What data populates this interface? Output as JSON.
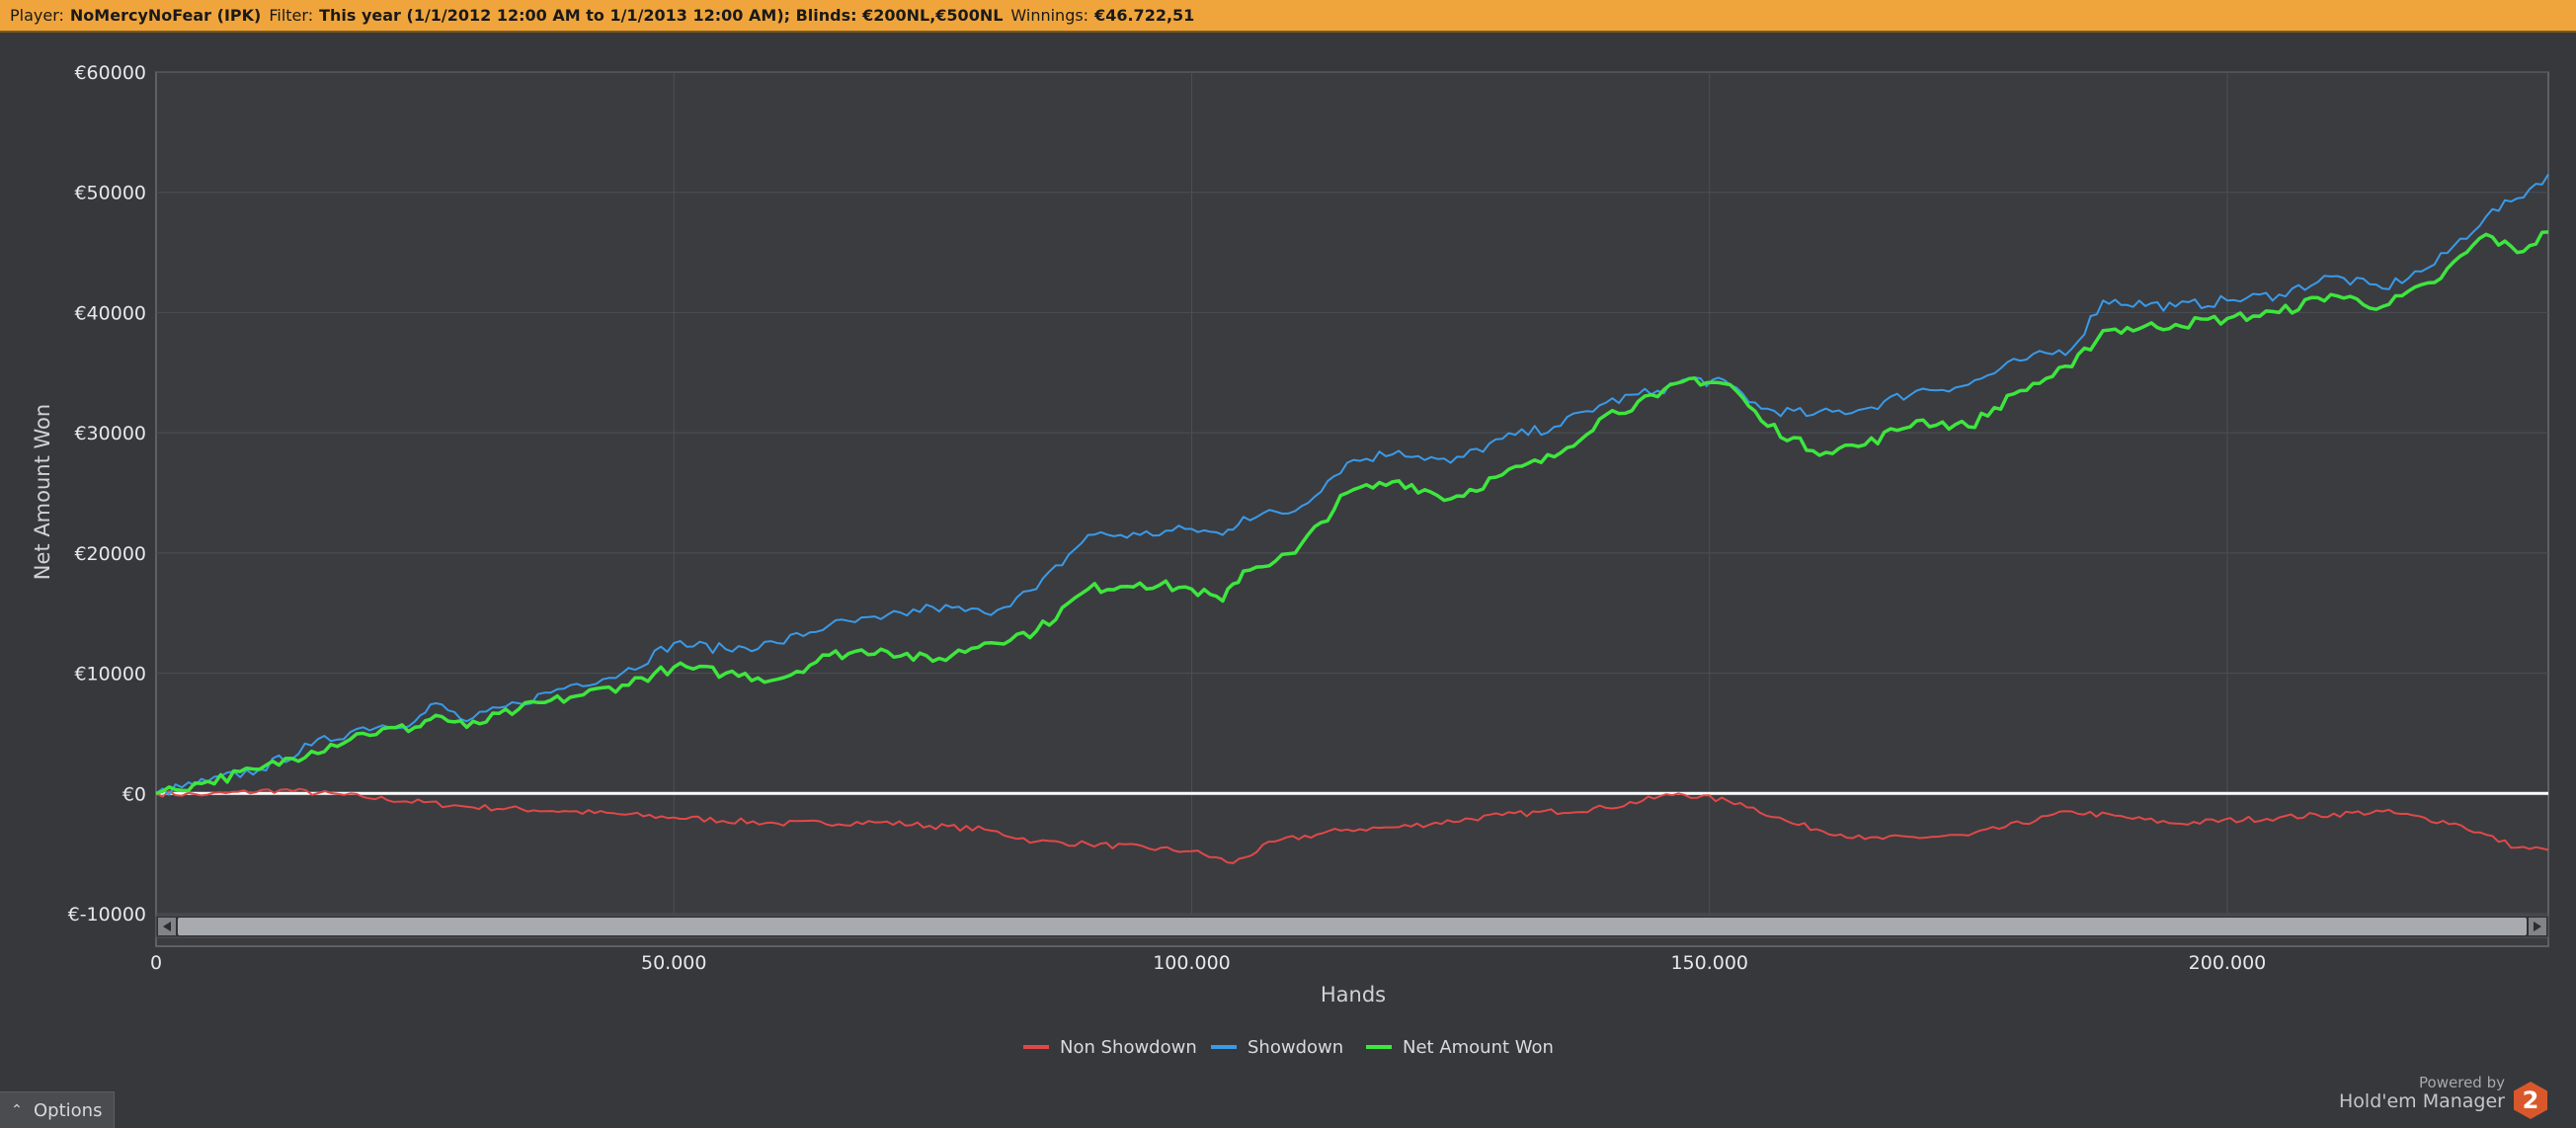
{
  "header": {
    "player_label": "Player:",
    "player_value": "NoMercyNoFear (IPK)",
    "filter_label": "Filter:",
    "filter_value": "This year (1/1/2012 12:00 AM to 1/1/2013 12:00 AM); Blinds: €200NL,€500NL",
    "winnings_label": "Winnings:",
    "winnings_value": "€46.722,51"
  },
  "footer": {
    "options_label": "Options",
    "powered_by": "Powered by",
    "brand": "Hold'em Manager",
    "logo_number": "2"
  },
  "colors": {
    "non_showdown": "#e04848",
    "showdown": "#3a9ae8",
    "net_won": "#3ee63e",
    "zero_line": "#ffffff"
  },
  "chart_data": {
    "type": "line",
    "xlabel": "Hands",
    "ylabel": "Net Amount Won",
    "xlim": [
      0,
      231000
    ],
    "ylim": [
      -10000,
      60000
    ],
    "x_ticks": [
      0,
      50000,
      100000,
      150000,
      200000
    ],
    "x_tick_labels": [
      "0",
      "50.000",
      "100.000",
      "150.000",
      "200.000"
    ],
    "y_ticks": [
      -10000,
      0,
      10000,
      20000,
      30000,
      40000,
      50000,
      60000
    ],
    "y_tick_labels": [
      "€-10000",
      "€0",
      "€10000",
      "€20000",
      "€30000",
      "€40000",
      "€50000",
      "€60000"
    ],
    "grid": true,
    "legend_position": "bottom-center",
    "series": [
      {
        "name": "Non Showdown",
        "x": [
          0,
          5000,
          12000,
          20000,
          30000,
          40000,
          50000,
          60000,
          70000,
          80000,
          85000,
          90000,
          100000,
          104000,
          108000,
          115000,
          120000,
          130000,
          140000,
          147000,
          153000,
          158000,
          165000,
          175000,
          185000,
          195000,
          205000,
          215000,
          222000,
          228000,
          231000
        ],
        "y": [
          0,
          -100,
          300,
          -300,
          -1100,
          -1500,
          -2000,
          -2500,
          -2400,
          -3000,
          -4000,
          -4200,
          -4800,
          -5800,
          -4000,
          -3000,
          -2800,
          -1800,
          -1200,
          0,
          -800,
          -2500,
          -3800,
          -3500,
          -1500,
          -2500,
          -2000,
          -1500,
          -2500,
          -4500,
          -4700
        ]
      },
      {
        "name": "Showdown",
        "x": [
          0,
          5000,
          10000,
          15000,
          20000,
          25000,
          27000,
          30000,
          35000,
          40000,
          45000,
          50000,
          55000,
          60000,
          65000,
          70000,
          75000,
          80000,
          85000,
          90000,
          95000,
          100000,
          103000,
          105000,
          110000,
          115000,
          120000,
          125000,
          130000,
          135000,
          140000,
          145000,
          148000,
          152000,
          155000,
          160000,
          165000,
          170000,
          175000,
          180000,
          185000,
          188000,
          195000,
          200000,
          205000,
          210000,
          215000,
          220000,
          225000,
          228000,
          231000
        ],
        "y": [
          0,
          1000,
          2000,
          4000,
          5500,
          6000,
          7500,
          6000,
          7500,
          9000,
          10000,
          12500,
          12000,
          12500,
          14000,
          14500,
          15500,
          15000,
          17000,
          21500,
          21500,
          22000,
          21500,
          23000,
          23500,
          27500,
          28500,
          27500,
          29500,
          30500,
          32500,
          33500,
          34500,
          34000,
          32000,
          31500,
          32000,
          33500,
          34000,
          36000,
          37000,
          41000,
          40500,
          41000,
          41500,
          43000,
          42000,
          44000,
          48000,
          49500,
          51500
        ]
      },
      {
        "name": "Net Amount Won",
        "x": [
          0,
          5000,
          10000,
          15000,
          20000,
          25000,
          27000,
          30000,
          35000,
          40000,
          45000,
          50000,
          55000,
          60000,
          65000,
          70000,
          75000,
          80000,
          85000,
          90000,
          95000,
          100000,
          103000,
          105000,
          110000,
          115000,
          120000,
          125000,
          130000,
          135000,
          140000,
          145000,
          148000,
          152000,
          155000,
          160000,
          165000,
          170000,
          175000,
          180000,
          185000,
          188000,
          195000,
          200000,
          205000,
          210000,
          215000,
          220000,
          225000,
          228000,
          231000
        ],
        "y": [
          0,
          1000,
          2000,
          3500,
          5000,
          5500,
          6500,
          5500,
          7000,
          8000,
          9000,
          10500,
          10000,
          9500,
          11500,
          12000,
          11000,
          12500,
          13500,
          17000,
          17500,
          17000,
          16000,
          18500,
          20000,
          25000,
          26000,
          24500,
          26500,
          28000,
          31500,
          33000,
          34500,
          34000,
          31000,
          28500,
          29000,
          31000,
          30500,
          33500,
          35500,
          38500,
          39000,
          39500,
          40000,
          41500,
          40500,
          42500,
          46500,
          45000,
          46700
        ]
      }
    ]
  }
}
